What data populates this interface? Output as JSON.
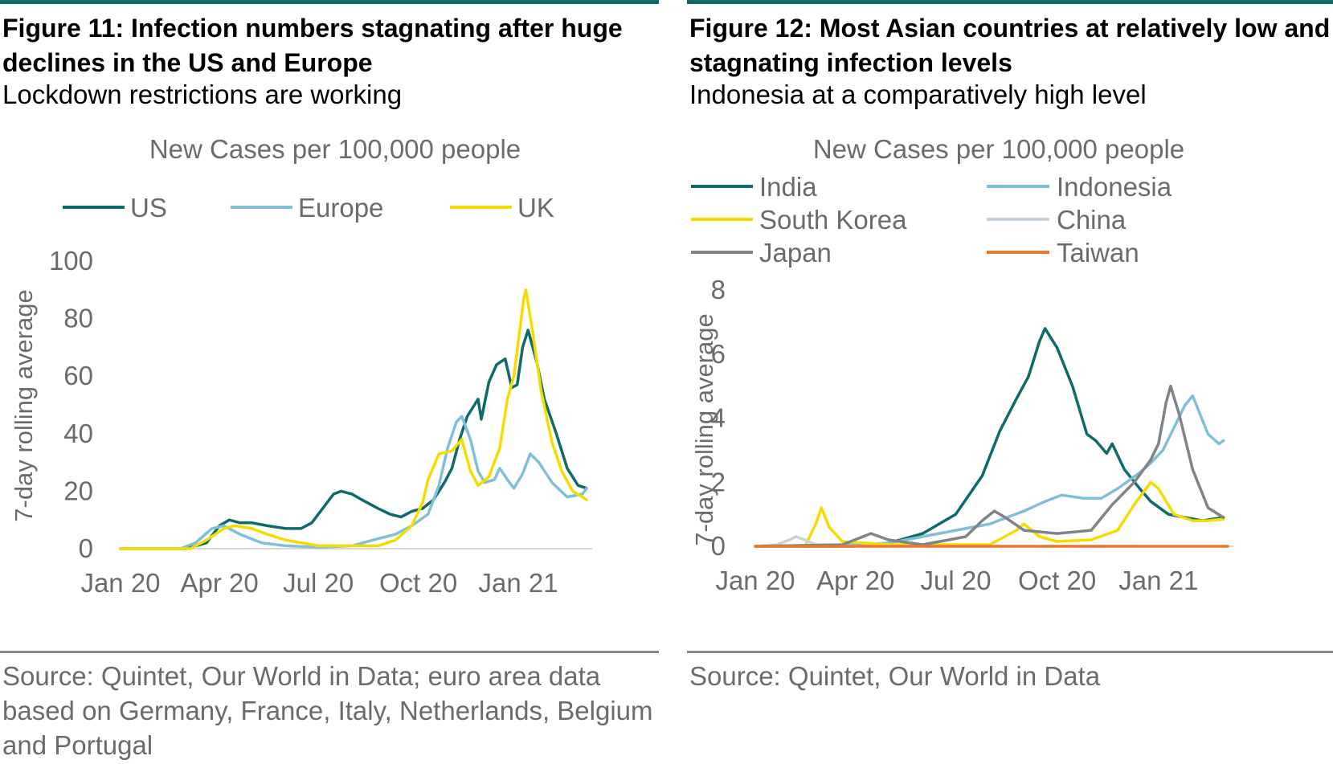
{
  "figures": [
    {
      "title": "Figure 11: Infection numbers stagnating after huge declines in the US and Europe",
      "subtitle": "Lockdown restrictions are working",
      "source": "Source: Quintet, Our World in Data; euro area data based on Germany, France, Italy, Netherlands, Belgium and Portugal"
    },
    {
      "title": "Figure 12: Most Asian countries at relatively low and stagnating infection levels",
      "subtitle": "Indonesia at a comparatively high level",
      "source": "Source: Quintet, Our World in Data"
    }
  ],
  "chart_data": [
    {
      "type": "line",
      "title": "New Cases per 100,000 people",
      "ylabel": "7-day rolling average",
      "xlabel": "",
      "ylim": [
        0,
        100
      ],
      "yticks": [
        0,
        20,
        40,
        60,
        80,
        100
      ],
      "xlim": [
        "2020-01-01",
        "2021-03-10"
      ],
      "xticks": [
        {
          "date": "2020-01-01",
          "label": "Jan 20"
        },
        {
          "date": "2020-04-01",
          "label": "Apr 20"
        },
        {
          "date": "2020-07-01",
          "label": "Jul 20"
        },
        {
          "date": "2020-10-01",
          "label": "Oct 20"
        },
        {
          "date": "2021-01-01",
          "label": "Jan 21"
        }
      ],
      "grid": false,
      "legend": "top",
      "series": [
        {
          "name": "US",
          "color": "#0e6b6a",
          "points": [
            [
              "2020-01-01",
              0
            ],
            [
              "2020-03-01",
              0
            ],
            [
              "2020-03-20",
              2
            ],
            [
              "2020-04-01",
              8
            ],
            [
              "2020-04-10",
              10
            ],
            [
              "2020-04-20",
              9
            ],
            [
              "2020-05-01",
              9
            ],
            [
              "2020-05-15",
              8
            ],
            [
              "2020-06-01",
              7
            ],
            [
              "2020-06-15",
              7
            ],
            [
              "2020-06-25",
              9
            ],
            [
              "2020-07-05",
              14
            ],
            [
              "2020-07-15",
              19
            ],
            [
              "2020-07-22",
              20
            ],
            [
              "2020-08-01",
              19
            ],
            [
              "2020-08-10",
              17
            ],
            [
              "2020-08-25",
              14
            ],
            [
              "2020-09-05",
              12
            ],
            [
              "2020-09-15",
              11
            ],
            [
              "2020-09-25",
              13
            ],
            [
              "2020-10-05",
              14
            ],
            [
              "2020-10-15",
              17
            ],
            [
              "2020-10-25",
              23
            ],
            [
              "2020-11-01",
              28
            ],
            [
              "2020-11-08",
              38
            ],
            [
              "2020-11-15",
              46
            ],
            [
              "2020-11-25",
              52
            ],
            [
              "2020-11-28",
              45
            ],
            [
              "2020-12-05",
              58
            ],
            [
              "2020-12-12",
              64
            ],
            [
              "2020-12-20",
              66
            ],
            [
              "2020-12-26",
              56
            ],
            [
              "2020-12-31",
              57
            ],
            [
              "2021-01-05",
              70
            ],
            [
              "2021-01-10",
              76
            ],
            [
              "2021-01-18",
              65
            ],
            [
              "2021-01-25",
              52
            ],
            [
              "2021-02-05",
              40
            ],
            [
              "2021-02-15",
              28
            ],
            [
              "2021-02-25",
              22
            ],
            [
              "2021-03-05",
              21
            ]
          ]
        },
        {
          "name": "Europe",
          "color": "#7fc0d8",
          "points": [
            [
              "2020-01-01",
              0
            ],
            [
              "2020-02-25",
              0
            ],
            [
              "2020-03-10",
              2
            ],
            [
              "2020-03-25",
              7
            ],
            [
              "2020-04-05",
              8
            ],
            [
              "2020-04-20",
              5
            ],
            [
              "2020-05-10",
              2
            ],
            [
              "2020-06-01",
              1
            ],
            [
              "2020-07-01",
              0.5
            ],
            [
              "2020-08-01",
              1
            ],
            [
              "2020-08-20",
              3
            ],
            [
              "2020-09-10",
              5
            ],
            [
              "2020-09-25",
              8
            ],
            [
              "2020-10-10",
              12
            ],
            [
              "2020-10-20",
              22
            ],
            [
              "2020-10-28",
              35
            ],
            [
              "2020-11-05",
              44
            ],
            [
              "2020-11-10",
              46
            ],
            [
              "2020-11-18",
              38
            ],
            [
              "2020-11-25",
              27
            ],
            [
              "2020-12-01",
              23
            ],
            [
              "2020-12-10",
              24
            ],
            [
              "2020-12-15",
              28
            ],
            [
              "2020-12-22",
              24
            ],
            [
              "2020-12-28",
              21
            ],
            [
              "2021-01-05",
              26
            ],
            [
              "2021-01-12",
              33
            ],
            [
              "2021-01-20",
              30
            ],
            [
              "2021-02-01",
              23
            ],
            [
              "2021-02-15",
              18
            ],
            [
              "2021-03-01",
              19
            ],
            [
              "2021-03-05",
              21
            ]
          ]
        },
        {
          "name": "UK",
          "color": "#f5dc00",
          "points": [
            [
              "2020-01-01",
              0
            ],
            [
              "2020-03-05",
              0
            ],
            [
              "2020-03-20",
              3
            ],
            [
              "2020-04-05",
              7
            ],
            [
              "2020-04-15",
              8
            ],
            [
              "2020-05-01",
              7
            ],
            [
              "2020-05-15",
              5
            ],
            [
              "2020-06-01",
              3
            ],
            [
              "2020-07-01",
              1
            ],
            [
              "2020-08-01",
              1
            ],
            [
              "2020-08-25",
              1
            ],
            [
              "2020-09-10",
              3
            ],
            [
              "2020-09-25",
              8
            ],
            [
              "2020-10-05",
              16
            ],
            [
              "2020-10-10",
              24
            ],
            [
              "2020-10-20",
              33
            ],
            [
              "2020-11-01",
              34
            ],
            [
              "2020-11-10",
              38
            ],
            [
              "2020-11-18",
              27
            ],
            [
              "2020-11-25",
              22
            ],
            [
              "2020-12-05",
              25
            ],
            [
              "2020-12-15",
              35
            ],
            [
              "2020-12-22",
              52
            ],
            [
              "2020-12-28",
              60
            ],
            [
              "2021-01-02",
              75
            ],
            [
              "2021-01-06",
              87
            ],
            [
              "2021-01-08",
              90
            ],
            [
              "2021-01-14",
              76
            ],
            [
              "2021-01-22",
              55
            ],
            [
              "2021-02-01",
              37
            ],
            [
              "2021-02-10",
              27
            ],
            [
              "2021-02-20",
              20
            ],
            [
              "2021-03-01",
              18
            ],
            [
              "2021-03-05",
              17
            ]
          ]
        }
      ]
    },
    {
      "type": "line",
      "title": "New Cases per 100,000 people",
      "ylabel": "7-day rolling average",
      "xlabel": "",
      "ylim": [
        0,
        8
      ],
      "yticks": [
        0,
        2,
        4,
        6,
        8
      ],
      "xlim": [
        "2020-01-01",
        "2021-03-10"
      ],
      "xticks": [
        {
          "date": "2020-01-01",
          "label": "Jan 20"
        },
        {
          "date": "2020-04-01",
          "label": "Apr 20"
        },
        {
          "date": "2020-07-01",
          "label": "Jul 20"
        },
        {
          "date": "2020-10-01",
          "label": "Oct 20"
        },
        {
          "date": "2021-01-01",
          "label": "Jan 21"
        }
      ],
      "grid": false,
      "legend": "top",
      "series": [
        {
          "name": "India",
          "color": "#0e6b6a",
          "points": [
            [
              "2020-01-01",
              0
            ],
            [
              "2020-04-01",
              0
            ],
            [
              "2020-05-01",
              0.1
            ],
            [
              "2020-06-01",
              0.4
            ],
            [
              "2020-07-01",
              1.0
            ],
            [
              "2020-07-25",
              2.2
            ],
            [
              "2020-08-10",
              3.6
            ],
            [
              "2020-08-25",
              4.6
            ],
            [
              "2020-09-05",
              5.3
            ],
            [
              "2020-09-15",
              6.4
            ],
            [
              "2020-09-20",
              6.8
            ],
            [
              "2020-10-01",
              6.2
            ],
            [
              "2020-10-15",
              5.0
            ],
            [
              "2020-10-28",
              3.5
            ],
            [
              "2020-11-05",
              3.3
            ],
            [
              "2020-11-15",
              2.9
            ],
            [
              "2020-11-20",
              3.2
            ],
            [
              "2020-12-01",
              2.4
            ],
            [
              "2020-12-15",
              1.8
            ],
            [
              "2020-12-25",
              1.4
            ],
            [
              "2021-01-10",
              1.0
            ],
            [
              "2021-01-25",
              0.9
            ],
            [
              "2021-02-10",
              0.8
            ],
            [
              "2021-03-01",
              0.9
            ]
          ]
        },
        {
          "name": "Indonesia",
          "color": "#7fc0d8",
          "points": [
            [
              "2020-01-01",
              0
            ],
            [
              "2020-04-01",
              0.05
            ],
            [
              "2020-05-01",
              0.1
            ],
            [
              "2020-06-01",
              0.3
            ],
            [
              "2020-07-01",
              0.5
            ],
            [
              "2020-08-01",
              0.7
            ],
            [
              "2020-09-01",
              1.1
            ],
            [
              "2020-09-20",
              1.4
            ],
            [
              "2020-10-05",
              1.6
            ],
            [
              "2020-10-25",
              1.5
            ],
            [
              "2020-11-10",
              1.5
            ],
            [
              "2020-11-25",
              1.8
            ],
            [
              "2020-12-15",
              2.3
            ],
            [
              "2020-12-25",
              2.6
            ],
            [
              "2021-01-05",
              3.0
            ],
            [
              "2021-01-15",
              3.7
            ],
            [
              "2021-01-25",
              4.4
            ],
            [
              "2021-02-01",
              4.7
            ],
            [
              "2021-02-08",
              4.1
            ],
            [
              "2021-02-15",
              3.5
            ],
            [
              "2021-02-25",
              3.2
            ],
            [
              "2021-03-01",
              3.3
            ]
          ]
        },
        {
          "name": "South Korea",
          "color": "#f5dc00",
          "points": [
            [
              "2020-01-01",
              0
            ],
            [
              "2020-02-15",
              0
            ],
            [
              "2020-02-25",
              0.7
            ],
            [
              "2020-03-01",
              1.2
            ],
            [
              "2020-03-08",
              0.6
            ],
            [
              "2020-03-20",
              0.15
            ],
            [
              "2020-05-01",
              0.05
            ],
            [
              "2020-08-01",
              0.05
            ],
            [
              "2020-08-25",
              0.5
            ],
            [
              "2020-09-01",
              0.7
            ],
            [
              "2020-09-15",
              0.3
            ],
            [
              "2020-10-01",
              0.15
            ],
            [
              "2020-11-01",
              0.2
            ],
            [
              "2020-11-25",
              0.5
            ],
            [
              "2020-12-10",
              1.3
            ],
            [
              "2020-12-25",
              2.0
            ],
            [
              "2021-01-01",
              1.8
            ],
            [
              "2021-01-15",
              1.0
            ],
            [
              "2021-02-01",
              0.8
            ],
            [
              "2021-02-15",
              0.8
            ],
            [
              "2021-03-01",
              0.85
            ]
          ]
        },
        {
          "name": "China",
          "color": "#c8d2dc",
          "points": [
            [
              "2020-01-01",
              0
            ],
            [
              "2020-01-20",
              0.05
            ],
            [
              "2020-02-01",
              0.2
            ],
            [
              "2020-02-07",
              0.3
            ],
            [
              "2020-02-15",
              0.2
            ],
            [
              "2020-02-25",
              0.05
            ],
            [
              "2020-03-15",
              0
            ],
            [
              "2021-03-05",
              0
            ]
          ]
        },
        {
          "name": "Japan",
          "color": "#808488",
          "points": [
            [
              "2020-01-01",
              0
            ],
            [
              "2020-03-20",
              0.05
            ],
            [
              "2020-04-15",
              0.4
            ],
            [
              "2020-05-01",
              0.2
            ],
            [
              "2020-06-01",
              0.05
            ],
            [
              "2020-07-10",
              0.3
            ],
            [
              "2020-07-25",
              0.8
            ],
            [
              "2020-08-05",
              1.1
            ],
            [
              "2020-08-15",
              0.9
            ],
            [
              "2020-09-01",
              0.5
            ],
            [
              "2020-10-01",
              0.4
            ],
            [
              "2020-11-01",
              0.5
            ],
            [
              "2020-11-20",
              1.3
            ],
            [
              "2020-12-10",
              2.0
            ],
            [
              "2020-12-25",
              2.7
            ],
            [
              "2021-01-01",
              3.2
            ],
            [
              "2021-01-08",
              4.5
            ],
            [
              "2021-01-12",
              5.0
            ],
            [
              "2021-01-20",
              4.1
            ],
            [
              "2021-02-01",
              2.4
            ],
            [
              "2021-02-15",
              1.2
            ],
            [
              "2021-03-01",
              0.9
            ]
          ]
        },
        {
          "name": "Taiwan",
          "color": "#e9792c",
          "points": [
            [
              "2020-01-01",
              0
            ],
            [
              "2021-03-05",
              0
            ]
          ]
        }
      ]
    }
  ]
}
